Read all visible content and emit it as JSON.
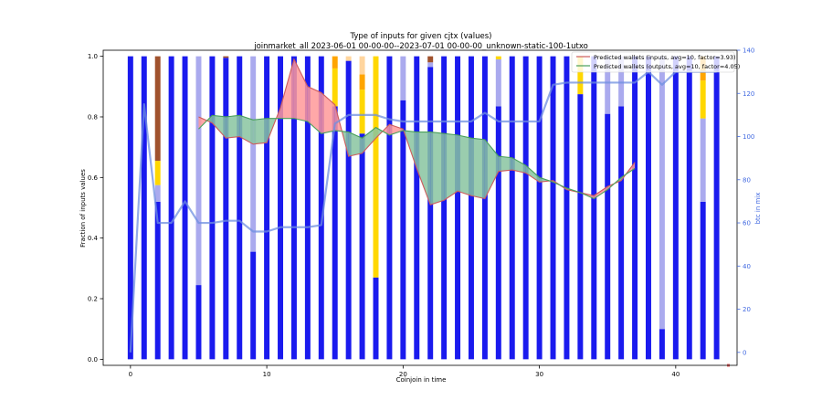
{
  "chart_data": {
    "type": "bar",
    "title": "Type of inputs for given cjtx (values)",
    "subtitle": "joinmarket_all 2023-06-01 00-00-00--2023-07-01 00-00-00_unknown-static-100-1utxo",
    "xlabel": "Coinjoin in time",
    "ylabel": "Fraction of inputs values",
    "y2label": "btc in mix",
    "xlim": [
      -2,
      44.5
    ],
    "ylim": [
      -0.02,
      1.02
    ],
    "y2lim": [
      -6,
      140
    ],
    "x_ticks": [
      0,
      10,
      20,
      30,
      40
    ],
    "y_ticks": [
      0.0,
      0.2,
      0.4,
      0.6,
      0.8,
      1.0
    ],
    "y2_ticks": [
      0,
      20,
      40,
      60,
      80,
      100,
      120,
      140
    ],
    "grid": false,
    "legend_position": "top-right",
    "colors": {
      "fresh": "#1a1aee",
      "remix": "#aaaaee",
      "gold": "#ffd700",
      "orange": "#ffa500",
      "brown": "#a0522d",
      "peach": "#ffd59e",
      "inputs_line": "#cd5c5c",
      "outputs_line": "#4aa05a",
      "red_fill": "#ff9999",
      "green_fill": "#88c4a0",
      "btc_line": "#6f8fe0"
    },
    "stack_series": [
      "fresh",
      "remix",
      "gold",
      "orange",
      "brown",
      "peach"
    ],
    "bars": [
      {
        "x": 0,
        "fresh": 1.0
      },
      {
        "x": 1,
        "fresh": 1.0
      },
      {
        "x": 2,
        "fresh": 0.52,
        "remix": 0.055,
        "gold": 0.08,
        "brown": 0.345
      },
      {
        "x": 3,
        "fresh": 1.0
      },
      {
        "x": 4,
        "fresh": 1.0
      },
      {
        "x": 5,
        "fresh": 0.245,
        "remix": 0.755
      },
      {
        "x": 6,
        "fresh": 1.0
      },
      {
        "x": 7,
        "fresh": 0.995,
        "brown": 0.005
      },
      {
        "x": 8,
        "fresh": 1.0
      },
      {
        "x": 9,
        "fresh": 0.355,
        "remix": 0.645
      },
      {
        "x": 10,
        "fresh": 1.0
      },
      {
        "x": 11,
        "fresh": 1.0
      },
      {
        "x": 12,
        "fresh": 1.0
      },
      {
        "x": 13,
        "fresh": 1.0
      },
      {
        "x": 14,
        "fresh": 1.0
      },
      {
        "x": 15,
        "fresh": 0.835,
        "orange": 0.04,
        "gold": 0.125
      },
      {
        "x": 16,
        "fresh": 0.985,
        "peach": 0.015
      },
      {
        "x": 17,
        "fresh": 0.745,
        "orange": 0.05,
        "gold": 0.145,
        "peach": 0.06
      },
      {
        "x": 18,
        "fresh": 0.27,
        "gold": 0.73
      },
      {
        "x": 19,
        "fresh": 1.0
      },
      {
        "x": 20,
        "fresh": 0.855,
        "remix": 0.145
      },
      {
        "x": 21,
        "fresh": 1.0
      },
      {
        "x": 22,
        "fresh": 0.965,
        "remix": 0.015,
        "brown": 0.02
      },
      {
        "x": 23,
        "fresh": 1.0
      },
      {
        "x": 24,
        "fresh": 1.0
      },
      {
        "x": 25,
        "fresh": 1.0
      },
      {
        "x": 26,
        "fresh": 1.0
      },
      {
        "x": 27,
        "fresh": 0.835,
        "remix": 0.155,
        "gold": 0.01
      },
      {
        "x": 28,
        "fresh": 1.0
      },
      {
        "x": 29,
        "fresh": 1.0
      },
      {
        "x": 30,
        "fresh": 1.0
      },
      {
        "x": 31,
        "fresh": 1.0
      },
      {
        "x": 32,
        "fresh": 1.0
      },
      {
        "x": 33,
        "fresh": 0.875,
        "gold": 0.125
      },
      {
        "x": 34,
        "fresh": 1.0
      },
      {
        "x": 35,
        "fresh": 0.81,
        "remix": 0.19
      },
      {
        "x": 36,
        "fresh": 0.835,
        "remix": 0.165
      },
      {
        "x": 37,
        "fresh": 1.0
      },
      {
        "x": 38,
        "fresh": 1.0
      },
      {
        "x": 39,
        "fresh": 0.1,
        "remix": 0.9
      },
      {
        "x": 40,
        "fresh": 1.0
      },
      {
        "x": 41,
        "fresh": 1.0
      },
      {
        "x": 42,
        "fresh": 0.52,
        "remix": 0.275,
        "orange": 0.08,
        "gold": 0.125
      },
      {
        "x": 43,
        "fresh": 1.0
      }
    ],
    "lines": [
      {
        "name": "Predicted wallets (inputs, avg=10, factor=3.93)",
        "x": [
          5,
          6,
          7,
          8,
          9,
          10,
          11,
          12,
          13,
          14,
          15,
          16,
          17,
          18,
          19,
          20,
          21,
          22,
          23,
          24,
          25,
          26,
          27,
          28,
          29,
          30,
          31,
          32,
          33,
          34,
          35,
          36,
          37
        ],
        "y": [
          0.8,
          0.78,
          0.73,
          0.735,
          0.71,
          0.715,
          0.83,
          0.99,
          0.9,
          0.88,
          0.84,
          0.67,
          0.68,
          0.73,
          0.775,
          0.76,
          0.63,
          0.51,
          0.525,
          0.555,
          0.54,
          0.53,
          0.62,
          0.625,
          0.615,
          0.585,
          0.59,
          0.56,
          0.55,
          0.54,
          0.57,
          0.59,
          0.65
        ]
      },
      {
        "name": "Predicted wallets (outputs, avg=10, factor=4.05)",
        "x": [
          5,
          6,
          7,
          8,
          9,
          10,
          11,
          12,
          13,
          14,
          15,
          16,
          17,
          18,
          19,
          20,
          21,
          22,
          23,
          24,
          25,
          26,
          27,
          28,
          29,
          30,
          31,
          32,
          33,
          34,
          35,
          36,
          37
        ],
        "y": [
          0.76,
          0.805,
          0.8,
          0.805,
          0.79,
          0.795,
          0.795,
          0.795,
          0.785,
          0.745,
          0.755,
          0.75,
          0.73,
          0.765,
          0.74,
          0.755,
          0.75,
          0.75,
          0.745,
          0.74,
          0.73,
          0.725,
          0.67,
          0.665,
          0.64,
          0.6,
          0.585,
          0.565,
          0.55,
          0.53,
          0.56,
          0.6,
          0.63
        ]
      },
      {
        "x": [
          0,
          1,
          2,
          3,
          4,
          5,
          6,
          7,
          8,
          9,
          10,
          11,
          12,
          13,
          14,
          15,
          16,
          17,
          18,
          19,
          20,
          21,
          22,
          23,
          24,
          25,
          26,
          27,
          28,
          29,
          30,
          31,
          32,
          33,
          34,
          35,
          36,
          37,
          38,
          39,
          40,
          41,
          42,
          43
        ],
        "y": [
          0,
          115,
          60,
          60,
          70,
          60,
          60,
          61,
          61,
          56,
          56,
          58,
          58,
          58,
          59,
          106,
          110,
          110,
          110,
          108,
          107,
          107,
          107,
          107,
          107,
          107,
          111,
          107,
          107,
          107,
          107,
          124,
          125,
          125,
          125,
          125,
          125,
          125,
          130,
          124,
          130,
          130,
          130,
          130
        ]
      }
    ]
  }
}
